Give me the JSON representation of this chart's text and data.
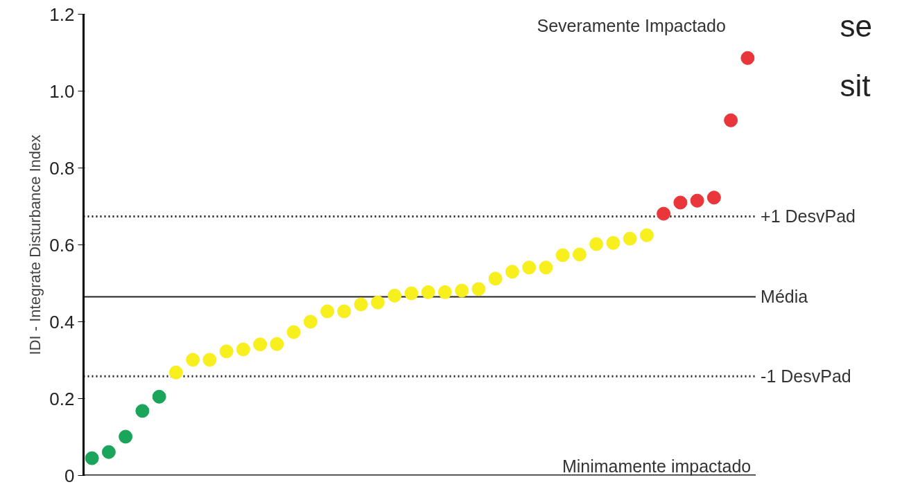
{
  "chart_data": {
    "type": "scatter",
    "ylabel": "IDI - Integrate Disturbance Index",
    "categories": [
      null,
      null,
      null,
      null,
      null,
      null,
      null,
      null,
      null,
      null,
      null,
      null,
      null,
      null,
      null,
      null,
      null,
      null,
      null,
      null,
      null,
      null,
      null,
      null,
      null,
      null,
      null,
      null,
      null,
      null,
      null,
      null,
      null,
      null,
      null,
      null,
      null,
      null,
      null,
      null
    ],
    "values": [
      0.045,
      0.061,
      0.101,
      0.168,
      0.205,
      0.268,
      0.301,
      0.301,
      0.323,
      0.328,
      0.341,
      0.342,
      0.373,
      0.4,
      0.427,
      0.427,
      0.445,
      0.45,
      0.468,
      0.474,
      0.477,
      0.477,
      0.481,
      0.485,
      0.512,
      0.53,
      0.541,
      0.541,
      0.573,
      0.575,
      0.602,
      0.605,
      0.616,
      0.625,
      0.681,
      0.71,
      0.715,
      0.723,
      0.924,
      1.086
    ],
    "colors": [
      "#1aa55a",
      "#1aa55a",
      "#1aa55a",
      "#1aa55a",
      "#1aa55a",
      "#f7ef1e",
      "#f7ef1e",
      "#f7ef1e",
      "#f7ef1e",
      "#f7ef1e",
      "#f7ef1e",
      "#f7ef1e",
      "#f7ef1e",
      "#f7ef1e",
      "#f7ef1e",
      "#f7ef1e",
      "#f7ef1e",
      "#f7ef1e",
      "#f7ef1e",
      "#f7ef1e",
      "#f7ef1e",
      "#f7ef1e",
      "#f7ef1e",
      "#f7ef1e",
      "#f7ef1e",
      "#f7ef1e",
      "#f7ef1e",
      "#f7ef1e",
      "#f7ef1e",
      "#f7ef1e",
      "#f7ef1e",
      "#f7ef1e",
      "#f7ef1e",
      "#f7ef1e",
      "#e8363a",
      "#e8363a",
      "#e8363a",
      "#e8363a",
      "#e8363a",
      "#e8363a"
    ],
    "ylim": [
      0,
      1.2
    ],
    "yticks": [
      0,
      {
        "value": 0.2,
        "label": "0.2"
      },
      {
        "value": 0.4,
        "label": "0.4"
      },
      {
        "value": 0.6,
        "label": "0.6"
      },
      {
        "value": 0.8,
        "label": "0.8"
      },
      {
        "value": 1.0,
        "label": "1.0"
      },
      {
        "value": 1.2,
        "label": "1.2"
      }
    ],
    "ref_lines": [
      {
        "axis": "y",
        "value": 0.674,
        "label": "+1 DesvPad",
        "line_style": "dotted",
        "color": "#222222"
      },
      {
        "axis": "y",
        "value": 0.465,
        "label": "Média",
        "line_style": "solid",
        "color": "#222222"
      },
      {
        "axis": "y",
        "value": 0.258,
        "label": "-1 DesvPad",
        "line_style": "dotted",
        "color": "#222222"
      }
    ],
    "annotations": [
      "Severamente Impactado",
      "Minimamente impactado",
      "se",
      "sit"
    ],
    "tick_labels": "y",
    "grid": false,
    "marker": "circle"
  }
}
